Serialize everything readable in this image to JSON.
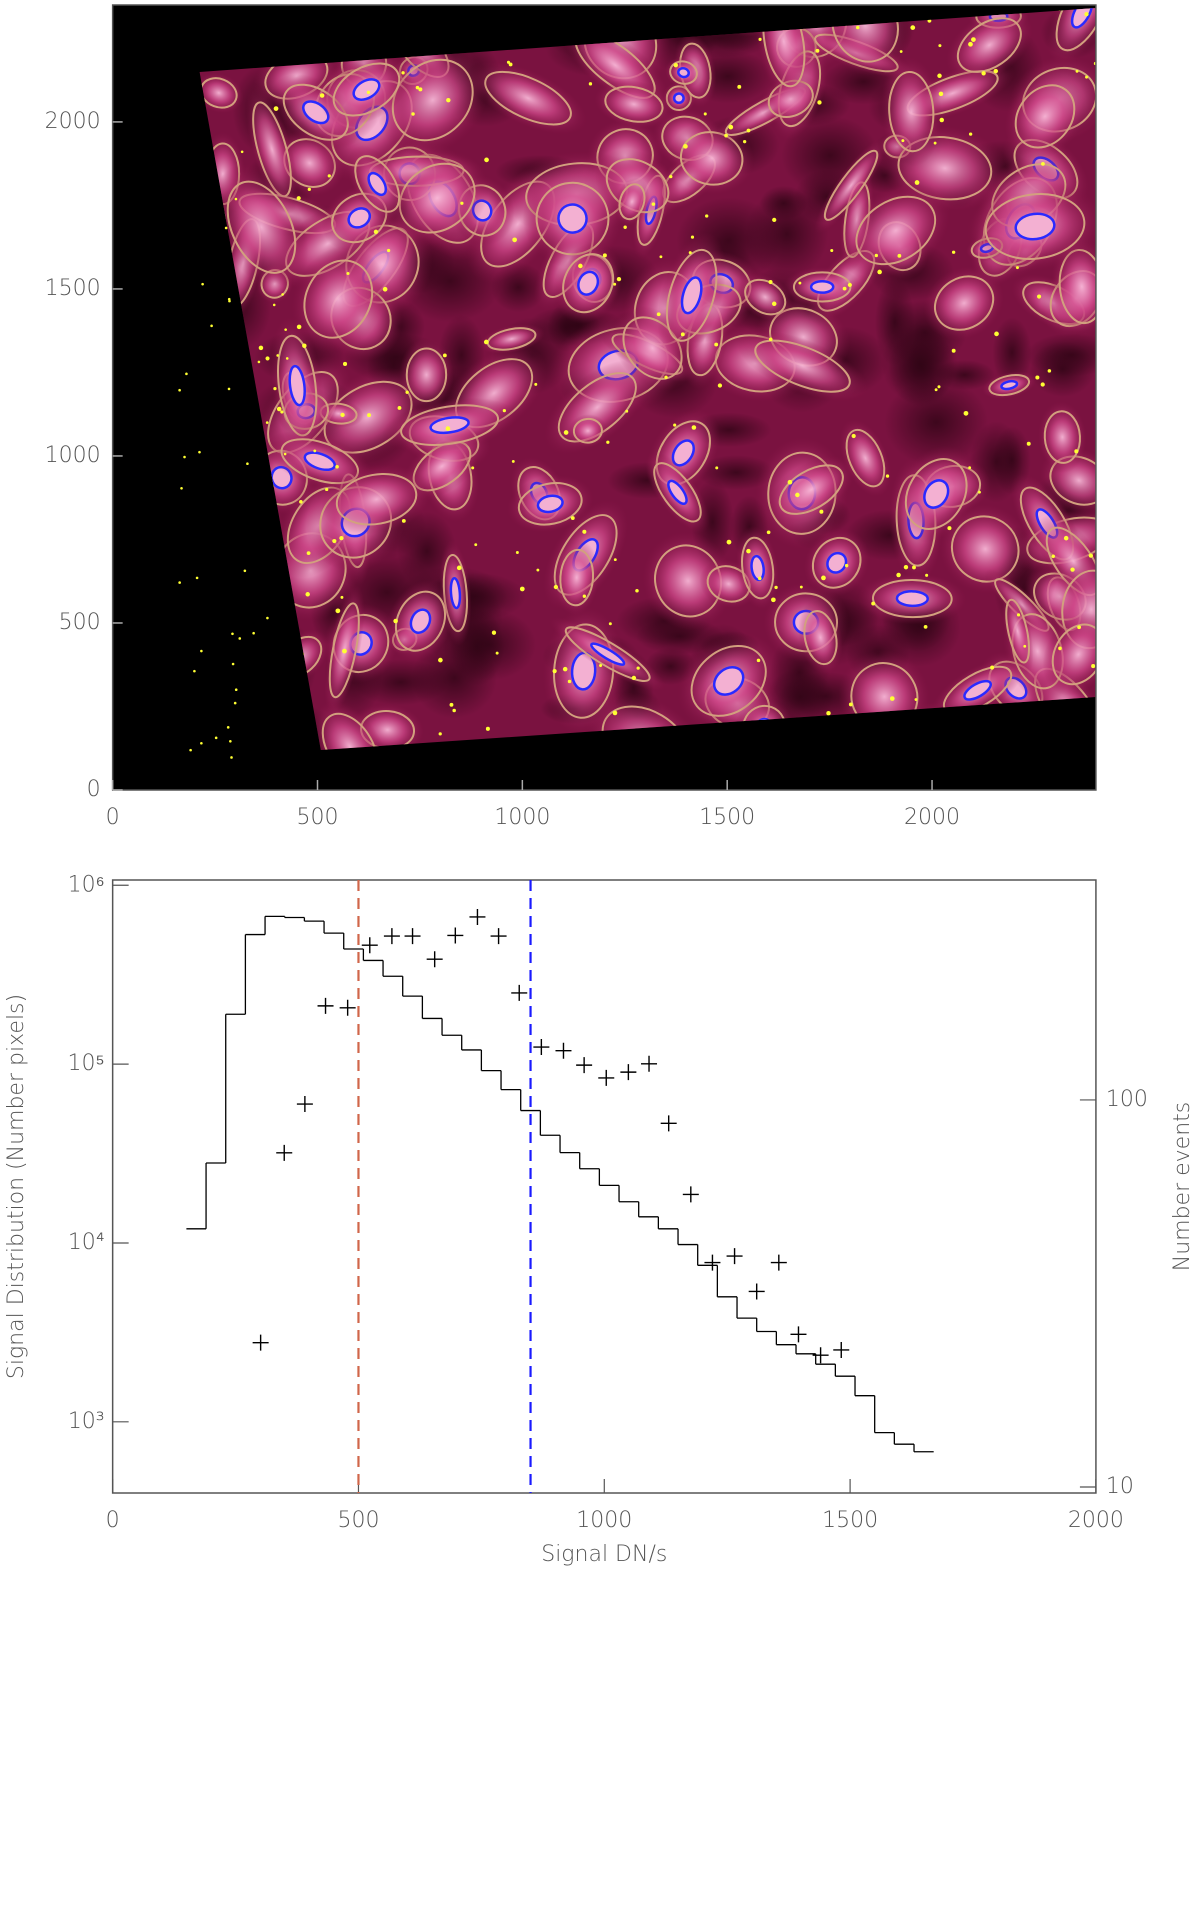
{
  "chart_data": [
    {
      "type": "image",
      "xlim": [
        0,
        2400
      ],
      "ylim": [
        0,
        2350
      ],
      "xticks": [
        0,
        500,
        1000,
        1500,
        2000
      ],
      "yticks": [
        0,
        500,
        1000,
        1500,
        2000
      ]
    },
    {
      "type": "histogram",
      "xlabel": "Signal DN/s",
      "ylabel": "Signal Distribution (Number pixels)",
      "y2label": "Number events",
      "xlim": [
        0,
        2000
      ],
      "ylim": [
        400,
        1070000
      ],
      "log_y": true,
      "y2lim": [
        9.65,
        370
      ],
      "log_y2": true,
      "xticks": [
        0,
        500,
        1000,
        1500,
        2000
      ],
      "yticks": [
        {
          "value": 1000,
          "label": "10³"
        },
        {
          "value": 10000,
          "label": "10⁴"
        },
        {
          "value": 100000,
          "label": "10⁵"
        },
        {
          "value": 1000000,
          "label": "10⁶"
        }
      ],
      "y2ticks": [
        10,
        100
      ],
      "bins": [
        150,
        190,
        230,
        270,
        310,
        350,
        390,
        430,
        470,
        510,
        550,
        590,
        630,
        670,
        710,
        750,
        790,
        830,
        870,
        910,
        950,
        990,
        1030,
        1070,
        1110,
        1150,
        1190,
        1230,
        1270,
        1310,
        1350,
        1390,
        1430,
        1470,
        1510,
        1550,
        1590,
        1630,
        1670
      ],
      "series": [
        {
          "color": "#000000",
          "values": [
            12000,
            28000,
            190000,
            530000,
            670000,
            660000,
            630000,
            540000,
            440000,
            380000,
            310000,
            240000,
            180000,
            145000,
            120000,
            92000,
            72000,
            55000,
            40000,
            32000,
            26000,
            21000,
            17000,
            14000,
            12000,
            9800,
            7500,
            5000,
            3800,
            3200,
            2700,
            2400,
            2100,
            1800,
            1400,
            870,
            750,
            680
          ]
        },
        {
          "axis": "y2",
          "marker": "+",
          "color": "#000000",
          "x": [
            301,
            349,
            391,
            433,
            478,
            523,
            568,
            610,
            655,
            697,
            742,
            785,
            827,
            872,
            917,
            959,
            1004,
            1049,
            1091,
            1131,
            1176,
            1220,
            1265,
            1310,
            1355,
            1395,
            1440,
            1482
          ],
          "values": [
            23.6,
            73,
            97.6,
            175,
            173,
            251,
            265,
            265,
            231,
            266,
            297,
            265,
            189,
            137,
            134,
            123,
            114,
            118,
            124,
            87,
            57,
            38,
            39.5,
            32,
            38,
            24.8,
            21.9,
            22.6
          ]
        }
      ],
      "vlines": [
        500,
        850
      ],
      "vline_colors": [
        "#d0664a",
        "#1a1aff"
      ]
    }
  ]
}
